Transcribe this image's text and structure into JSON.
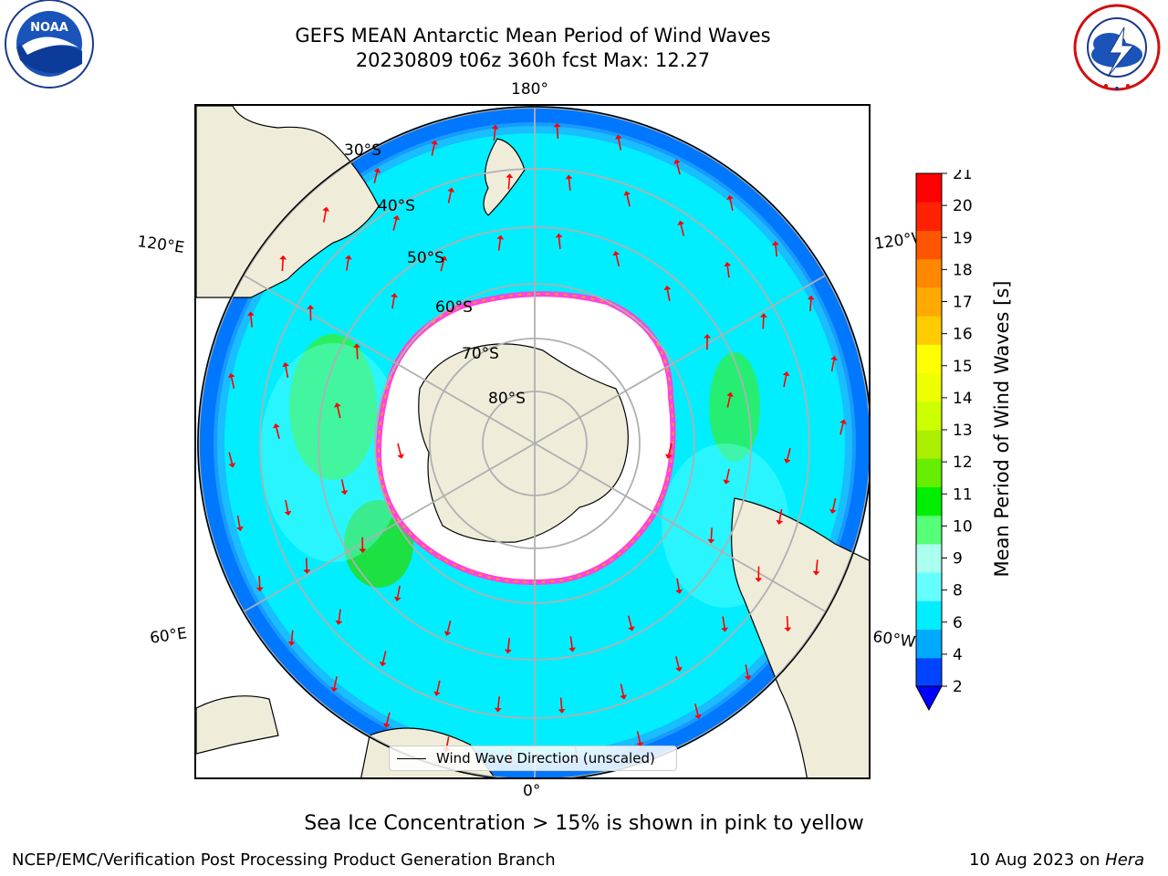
{
  "title": {
    "line1": "GEFS MEAN Antarctic Mean Period of Wind Waves",
    "line2": "20230809 t06z 360h fcst   Max: 12.27"
  },
  "map": {
    "projection": "south-polar-stereographic",
    "edge_labels": {
      "top": "180°",
      "bottom": "0°",
      "upper_left": "120°E",
      "upper_right": "120°W",
      "lower_left": "60°E",
      "lower_right": "60°W"
    },
    "latitude_labels": [
      "30°S",
      "40°S",
      "50°S",
      "60°S",
      "70°S",
      "80°S"
    ],
    "legend": {
      "label": "Wind Wave Direction (unscaled)"
    }
  },
  "colorbar": {
    "label": "Mean Period of Wind Waves [s]",
    "ticks": [
      "2",
      "4",
      "6",
      "8",
      "9",
      "10",
      "11",
      "12",
      "13",
      "14",
      "15",
      "16",
      "17",
      "18",
      "19",
      "20",
      "21"
    ],
    "colors": [
      "#0044ff",
      "#00aaff",
      "#00eeff",
      "#66ffff",
      "#aaffee",
      "#55ff77",
      "#00ee00",
      "#66ee00",
      "#aaee00",
      "#ccff00",
      "#eeff00",
      "#ffff00",
      "#ffcc00",
      "#ffaa00",
      "#ff8800",
      "#ff5500",
      "#ff2200",
      "#ff0000"
    ],
    "under_color": "#0000ff"
  },
  "footnote": "Sea Ice Concentration > 15% is shown in pink to yellow",
  "credit": "NCEP/EMC/Verification Post Processing Product Generation Branch",
  "date_stamp": {
    "text": "10 Aug 2023 on ",
    "machine": "Hera"
  },
  "logos": {
    "left": "noaa-logo",
    "right": "nws-logo"
  },
  "colors": {
    "land": "#efedda",
    "sea_ice_edge": "#ff44dd",
    "arrows": "#ff0000",
    "grid": "#b0b0b0"
  }
}
